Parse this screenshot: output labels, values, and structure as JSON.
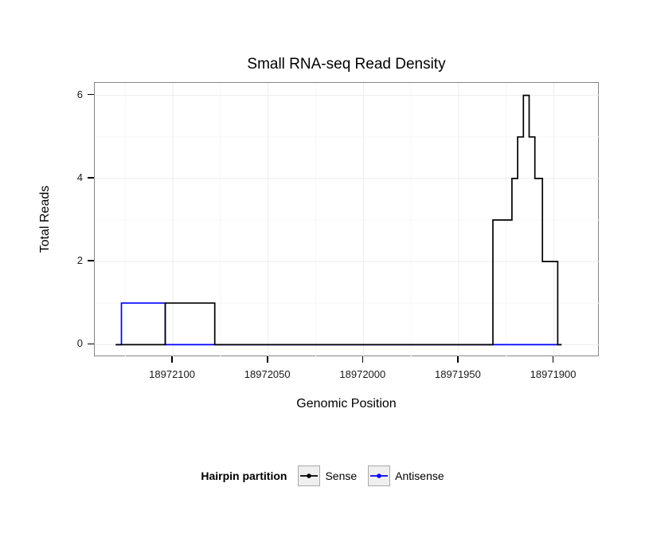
{
  "chart_data": {
    "type": "line",
    "title": "Small RNA-seq Read Density",
    "xlabel": "Genomic Position",
    "ylabel": "Total Reads",
    "x_reversed": true,
    "x_domain": [
      18972141,
      18971876
    ],
    "y_domain": [
      -0.3,
      6.3
    ],
    "x_ticks": [
      {
        "value": 18972100,
        "label": "18972100"
      },
      {
        "value": 18972050,
        "label": "18972050"
      },
      {
        "value": 18972000,
        "label": "18972000"
      },
      {
        "value": 18971950,
        "label": "18971950"
      },
      {
        "value": 18971900,
        "label": "18971900"
      }
    ],
    "y_ticks": [
      {
        "value": 0,
        "label": "0"
      },
      {
        "value": 2,
        "label": "2"
      },
      {
        "value": 4,
        "label": "4"
      },
      {
        "value": 6,
        "label": "6"
      }
    ],
    "x_minor": [
      18972125,
      18972075,
      18972025,
      18971975,
      18971925
    ],
    "y_minor": [
      1,
      3,
      5
    ],
    "grid": true,
    "legend": {
      "title": "Hairpin partition",
      "position": "bottom",
      "items": [
        {
          "label": "Sense",
          "color": "#000000"
        },
        {
          "label": "Antisense",
          "color": "#0000ff"
        }
      ]
    },
    "series": [
      {
        "name": "Antisense",
        "color": "#0000ff",
        "points": [
          [
            18972130,
            0
          ],
          [
            18972127,
            0
          ],
          [
            18972127,
            1
          ],
          [
            18972104,
            1
          ],
          [
            18972104,
            0
          ],
          [
            18971896,
            0
          ]
        ]
      },
      {
        "name": "Sense",
        "color": "#000000",
        "points": [
          [
            18972130,
            0
          ],
          [
            18972104,
            0
          ],
          [
            18972104,
            1
          ],
          [
            18972078,
            1
          ],
          [
            18972078,
            0
          ],
          [
            18971932,
            0
          ],
          [
            18971932,
            3
          ],
          [
            18971922,
            3
          ],
          [
            18971922,
            4
          ],
          [
            18971919,
            4
          ],
          [
            18971919,
            5
          ],
          [
            18971916,
            5
          ],
          [
            18971916,
            6
          ],
          [
            18971913,
            6
          ],
          [
            18971913,
            5
          ],
          [
            18971910,
            5
          ],
          [
            18971910,
            4
          ],
          [
            18971906,
            4
          ],
          [
            18971906,
            2
          ],
          [
            18971898,
            2
          ],
          [
            18971898,
            0
          ],
          [
            18971896,
            0
          ]
        ]
      }
    ],
    "colors": {
      "panel_border": "#858585",
      "grid_major": "#ececec",
      "grid_minor": "#f6f6f6",
      "tick": "#000000",
      "series_stroke_width": 1.7,
      "legend_key_bg": "#efefef",
      "legend_key_border": "#a8a8a8"
    }
  }
}
